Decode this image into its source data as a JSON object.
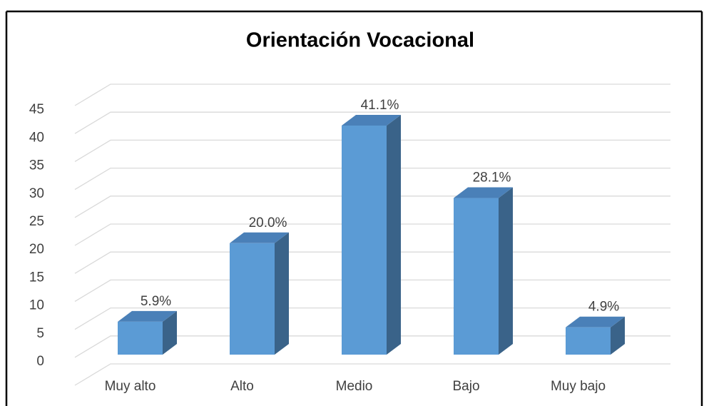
{
  "chart_data": {
    "type": "bar3d",
    "title": "Orientación Vocacional",
    "categories": [
      "Muy alto",
      "Alto",
      "Medio",
      "Bajo",
      "Muy bajo"
    ],
    "values": [
      5.9,
      20.0,
      41.1,
      28.1,
      4.9
    ],
    "value_labels": [
      "5.9%",
      "20.0%",
      "41.1%",
      "28.1%",
      "4.9%"
    ],
    "color": "#5b9bd5",
    "ylim": [
      0,
      50
    ],
    "yticks": [
      0,
      5,
      10,
      15,
      20,
      25,
      30,
      35,
      40,
      45
    ],
    "grid": true
  }
}
